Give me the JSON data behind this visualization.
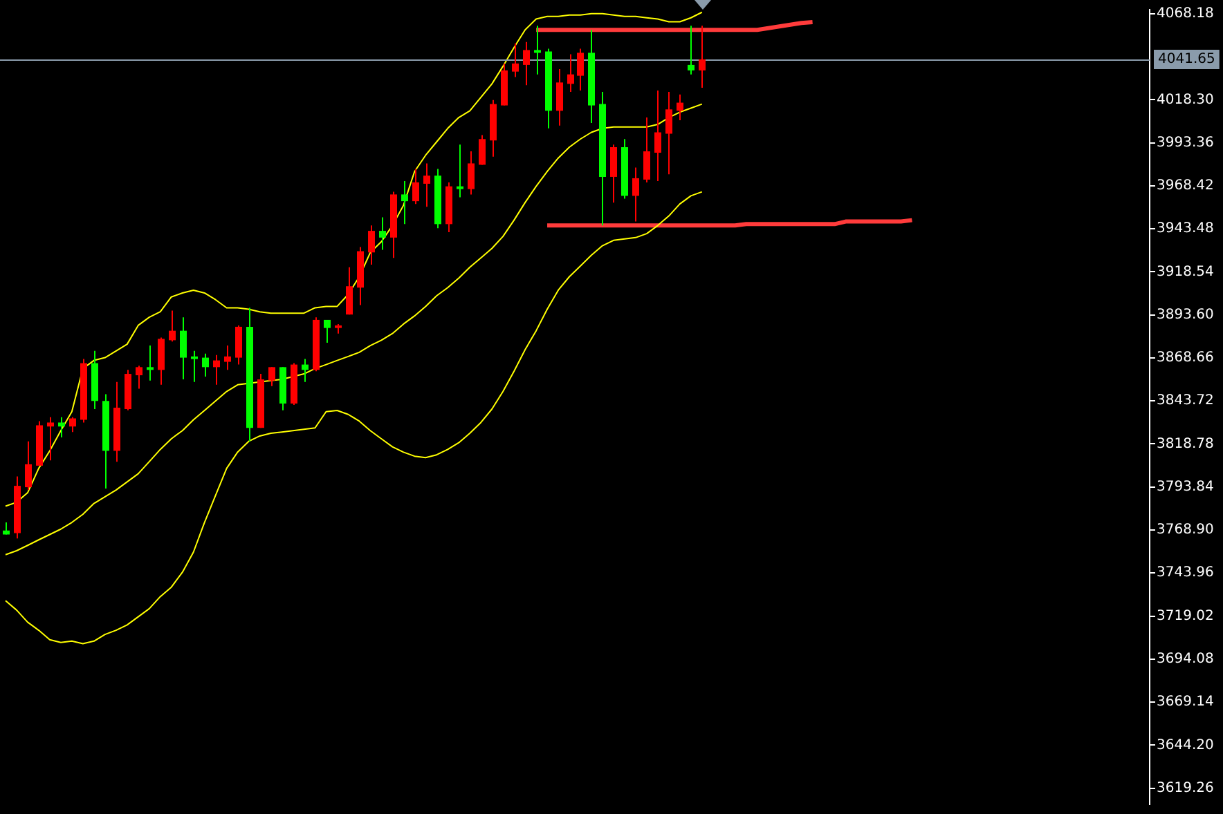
{
  "chart_data": {
    "type": "candlestick",
    "categories": [
      null,
      null,
      null,
      null,
      null,
      null,
      null,
      null,
      null,
      null,
      null,
      null,
      null,
      null,
      null,
      null,
      null,
      null,
      null,
      null,
      null,
      null,
      null,
      null,
      null,
      null,
      null,
      null,
      null,
      null,
      null,
      null,
      null,
      null,
      null,
      null,
      null,
      null,
      null,
      null,
      null,
      null,
      null,
      null,
      null,
      null,
      null,
      null,
      null,
      null,
      null,
      null,
      null,
      null,
      null,
      null,
      null,
      null,
      null,
      null,
      null,
      null,
      null,
      null,
      null,
      null,
      null,
      null,
      null,
      null,
      null,
      null,
      null,
      null,
      null,
      null,
      null,
      null,
      null,
      null,
      null,
      null,
      null,
      null,
      null,
      null,
      null,
      null,
      null,
      null,
      null,
      null,
      null,
      null,
      null,
      null,
      null,
      null,
      null,
      null,
      null,
      null,
      null,
      null
    ],
    "ohlc": [
      [
        3768.6,
        3773.3,
        3766.3,
        3766.3
      ],
      [
        3767.1,
        3799.9,
        3764.0,
        3794.5
      ],
      [
        3793.7,
        3820.3,
        3792.1,
        3807.0
      ],
      [
        3806.2,
        3832.0,
        3806.2,
        3829.6
      ],
      [
        3828.9,
        3834.3,
        3809.3,
        3831.2
      ],
      [
        3831.2,
        3834.3,
        3822.6,
        3828.9
      ],
      [
        3828.9,
        3834.3,
        3825.7,
        3833.6
      ],
      [
        3832.8,
        3868.0,
        3831.2,
        3865.6
      ],
      [
        3865.6,
        3872.7,
        3839.0,
        3843.7
      ],
      [
        3843.7,
        3847.6,
        3792.9,
        3814.8
      ],
      [
        3814.8,
        3854.7,
        3808.5,
        3839.8
      ],
      [
        3839.0,
        3861.7,
        3838.3,
        3859.4
      ],
      [
        3858.6,
        3864.1,
        3850.8,
        3863.3
      ],
      [
        3863.3,
        3875.8,
        3855.5,
        3861.7
      ],
      [
        3861.7,
        3880.5,
        3853.1,
        3879.7
      ],
      [
        3878.9,
        3896.1,
        3878.1,
        3884.4
      ],
      [
        3884.4,
        3892.2,
        3856.2,
        3868.8
      ],
      [
        3869.5,
        3872.7,
        3854.7,
        3868.0
      ],
      [
        3868.8,
        3871.1,
        3857.8,
        3863.3
      ],
      [
        3863.3,
        3870.3,
        3853.1,
        3867.2
      ],
      [
        3866.4,
        3875.8,
        3861.7,
        3869.5
      ],
      [
        3868.8,
        3887.5,
        3864.8,
        3886.7
      ],
      [
        3886.7,
        3897.7,
        3820.3,
        3828.1
      ],
      [
        3828.1,
        3859.4,
        3828.1,
        3856.2
      ],
      [
        3855.5,
        3863.3,
        3852.3,
        3863.3
      ],
      [
        3863.3,
        3863.3,
        3838.3,
        3842.2
      ],
      [
        3842.2,
        3865.6,
        3841.4,
        3864.8
      ],
      [
        3864.8,
        3868.0,
        3854.7,
        3861.7
      ],
      [
        3861.7,
        3892.2,
        3860.9,
        3890.7
      ],
      [
        3890.7,
        3890.7,
        3877.4,
        3886.0
      ],
      [
        3886.0,
        3888.3,
        3882.8,
        3887.5
      ],
      [
        3893.8,
        3921.2,
        3893.8,
        3910.2
      ],
      [
        3909.4,
        3932.9,
        3899.3,
        3930.5
      ],
      [
        3929.8,
        3945.4,
        3922.7,
        3942.3
      ],
      [
        3942.3,
        3950.1,
        3931.3,
        3938.4
      ],
      [
        3938.4,
        3965.0,
        3926.6,
        3963.4
      ],
      [
        3963.4,
        3971.2,
        3946.2,
        3959.5
      ],
      [
        3959.5,
        3978.2,
        3957.9,
        3970.4
      ],
      [
        3969.6,
        3981.4,
        3956.3,
        3974.3
      ],
      [
        3974.3,
        3978.2,
        3943.8,
        3946.2
      ],
      [
        3946.2,
        3970.4,
        3941.5,
        3968.1
      ],
      [
        3968.1,
        3992.3,
        3961.8,
        3966.5
      ],
      [
        3966.5,
        3988.4,
        3963.4,
        3981.4
      ],
      [
        3980.6,
        3997.8,
        3980.6,
        3995.5
      ],
      [
        3994.7,
        4018.1,
        3985.3,
        4015.8
      ],
      [
        4015.0,
        4039.3,
        4015.0,
        4035.3
      ],
      [
        4034.6,
        4051.0,
        4031.4,
        4039.3
      ],
      [
        4038.5,
        4051.8,
        4026.7,
        4047.1
      ],
      [
        4047.1,
        4061.2,
        4033.0,
        4045.5
      ],
      [
        4046.3,
        4047.9,
        4001.7,
        4011.9
      ],
      [
        4011.9,
        4036.1,
        4003.3,
        4028.3
      ],
      [
        4027.5,
        4044.7,
        4022.8,
        4033.0
      ],
      [
        4032.2,
        4047.9,
        4023.6,
        4045.5
      ],
      [
        4045.5,
        4058.8,
        4004.8,
        4015.0
      ],
      [
        4015.8,
        4022.8,
        3945.4,
        3973.6
      ],
      [
        3973.6,
        3992.3,
        3958.7,
        3990.8
      ],
      [
        3990.8,
        3995.5,
        3961.0,
        3962.6
      ],
      [
        3962.6,
        3979.0,
        3947.7,
        3972.8
      ],
      [
        3972.0,
        4008.0,
        3970.4,
        3988.4
      ],
      [
        3987.6,
        4023.6,
        3971.2,
        3999.4
      ],
      [
        3998.6,
        4022.8,
        3975.1,
        4012.7
      ],
      [
        4011.9,
        4021.3,
        4006.4,
        4016.6
      ],
      [
        4038.5,
        4061.2,
        4033.0,
        4035.3
      ],
      [
        4035.3,
        4061.2,
        4025.2,
        4041.7
      ],
      null,
      null,
      null,
      null,
      null,
      null,
      null,
      null,
      null,
      null,
      null,
      null,
      null,
      null,
      null,
      null,
      null,
      null,
      null,
      null,
      null,
      null,
      null,
      null,
      null,
      null,
      null,
      null,
      null,
      null,
      null,
      null,
      null,
      null,
      null,
      null,
      null,
      null,
      null,
      null
    ],
    "colors": [
      "#00ff00",
      "#ff0000",
      "#ff0000",
      "#ff0000",
      "#ff0000",
      "#00ff00",
      "#ff0000",
      "#ff0000",
      "#00ff00",
      "#00ff00",
      "#ff0000",
      "#ff0000",
      "#ff0000",
      "#00ff00",
      "#ff0000",
      "#ff0000",
      "#00ff00",
      "#00ff00",
      "#00ff00",
      "#ff0000",
      "#ff0000",
      "#ff0000",
      "#00ff00",
      "#ff0000",
      "#ff0000",
      "#00ff00",
      "#ff0000",
      "#00ff00",
      "#ff0000",
      "#00ff00",
      "#ff0000",
      "#ff0000",
      "#ff0000",
      "#ff0000",
      "#00ff00",
      "#ff0000",
      "#00ff00",
      "#ff0000",
      "#ff0000",
      "#00ff00",
      "#ff0000",
      "#00ff00",
      "#ff0000",
      "#ff0000",
      "#ff0000",
      "#ff0000",
      "#ff0000",
      "#ff0000",
      "#00ff00",
      "#00ff00",
      "#ff0000",
      "#ff0000",
      "#ff0000",
      "#00ff00",
      "#00ff00",
      "#ff0000",
      "#00ff00",
      "#ff0000",
      "#ff0000",
      "#ff0000",
      "#ff0000",
      "#ff0000",
      "#00ff00",
      "#ff0000",
      null,
      null,
      null,
      null,
      null,
      null,
      null,
      null,
      null,
      null,
      null,
      null,
      null,
      null,
      null,
      null,
      null,
      null,
      null,
      null,
      null,
      null,
      null,
      null,
      null,
      null,
      null,
      null,
      null,
      null,
      null,
      null,
      null,
      null,
      null,
      null,
      null,
      null,
      null,
      null
    ],
    "series": [
      {
        "type": "line",
        "color": "#ffff00",
        "values": [
          3782.7,
          3785.0,
          3790.5,
          3804.6,
          3814.8,
          3826.5,
          3837.5,
          3862.5,
          3867.2,
          3868.8,
          3872.7,
          3876.6,
          3887.5,
          3892.2,
          3895.4,
          3904.0,
          3906.3,
          3907.9,
          3906.3,
          3902.4,
          3897.7,
          3897.7,
          3896.9,
          3895.4,
          3894.6,
          3894.6,
          3894.6,
          3894.6,
          3897.7,
          3898.5,
          3898.5,
          3905.5,
          3915.7,
          3929.8,
          3936.0,
          3945.4,
          3957.1,
          3976.7,
          3986.1,
          3993.9,
          4001.7,
          4008.0,
          4011.9,
          4019.7,
          4027.5,
          4037.7,
          4048.6,
          4058.8,
          4065.1,
          4066.6,
          4066.6,
          4067.4,
          4067.4,
          4068.2,
          4068.2,
          4067.4,
          4066.6,
          4066.6,
          4065.8,
          4065.1,
          4063.5,
          4063.5,
          4065.8,
          4069.0,
          null,
          null,
          null,
          null,
          null,
          null,
          null,
          null,
          null,
          null,
          null,
          null,
          null,
          null,
          null,
          null,
          null,
          null,
          null,
          null,
          null,
          null,
          null,
          null,
          null,
          null,
          null,
          null,
          null,
          null,
          null,
          null,
          null,
          null,
          null,
          null,
          null,
          null,
          null,
          null
        ]
      },
      {
        "type": "line",
        "color": "#ffff00",
        "values": [
          3754.6,
          3756.9,
          3760.0,
          3763.2,
          3766.3,
          3769.4,
          3773.3,
          3778.0,
          3784.3,
          3788.2,
          3792.1,
          3796.8,
          3801.5,
          3808.5,
          3815.6,
          3821.8,
          3826.5,
          3832.8,
          3838.2,
          3843.7,
          3849.2,
          3853.1,
          3853.9,
          3854.7,
          3855.5,
          3856.2,
          3857.8,
          3859.4,
          3862.5,
          3864.8,
          3867.2,
          3869.5,
          3871.9,
          3875.8,
          3878.9,
          3882.8,
          3888.3,
          3893.0,
          3898.5,
          3904.7,
          3909.4,
          3914.9,
          3921.2,
          3926.6,
          3932.1,
          3939.1,
          3948.5,
          3958.7,
          3968.1,
          3976.7,
          3984.5,
          3990.8,
          3995.5,
          3999.4,
          4001.7,
          4002.5,
          4002.5,
          4002.5,
          4002.5,
          4004.0,
          4008.0,
          4011.1,
          4013.4,
          4015.8,
          null,
          null,
          null,
          null,
          null,
          null,
          null,
          null,
          null,
          null,
          null,
          null,
          null,
          null,
          null,
          null,
          null,
          null,
          null,
          null,
          null,
          null,
          null,
          null,
          null,
          null,
          null,
          null,
          null,
          null,
          null,
          null,
          null,
          null,
          null,
          null,
          null,
          null,
          null,
          null
        ]
      },
      {
        "type": "line",
        "color": "#ffff00",
        "values": [
          3728.0,
          3722.5,
          3715.5,
          3710.8,
          3705.3,
          3703.7,
          3704.5,
          3703.0,
          3704.5,
          3708.4,
          3710.8,
          3713.9,
          3718.6,
          3723.3,
          3730.3,
          3735.8,
          3744.4,
          3756.1,
          3773.3,
          3789.0,
          3804.6,
          3814.1,
          3820.3,
          3823.4,
          3825.0,
          3825.7,
          3826.5,
          3827.3,
          3828.1,
          3837.5,
          3838.2,
          3835.9,
          3832.0,
          3826.5,
          3821.8,
          3817.1,
          3814.0,
          3811.7,
          3810.9,
          3812.5,
          3815.6,
          3819.5,
          3825.0,
          3831.2,
          3839.0,
          3849.2,
          3860.9,
          3873.4,
          3884.4,
          3896.9,
          3907.9,
          3915.7,
          3921.9,
          3928.2,
          3933.7,
          3936.8,
          3937.6,
          3938.4,
          3940.7,
          3945.4,
          3950.9,
          3957.9,
          3962.6,
          3964.9,
          null,
          null,
          null,
          null,
          null,
          null,
          null,
          null,
          null,
          null,
          null,
          null,
          null,
          null,
          null,
          null,
          null,
          null,
          null,
          null,
          null,
          null,
          null,
          null,
          null,
          null,
          null,
          null,
          null,
          null,
          null,
          null,
          null,
          null,
          null,
          null,
          null,
          null,
          null,
          null
        ]
      },
      {
        "type": "line",
        "color": "#ff3b3b",
        "values": [
          null,
          null,
          null,
          null,
          null,
          null,
          null,
          null,
          null,
          null,
          null,
          null,
          null,
          null,
          null,
          null,
          null,
          null,
          null,
          null,
          null,
          null,
          null,
          null,
          null,
          null,
          null,
          null,
          null,
          null,
          null,
          null,
          null,
          null,
          null,
          null,
          null,
          null,
          null,
          null,
          null,
          null,
          null,
          null,
          null,
          null,
          null,
          null,
          4058.8,
          4058.8,
          4058.8,
          4058.8,
          4058.8,
          4058.8,
          4058.8,
          4058.8,
          4058.8,
          4058.8,
          4058.8,
          4058.8,
          4058.8,
          4058.8,
          4058.8,
          4058.8,
          4058.8,
          4058.8,
          4058.8,
          4058.8,
          4058.8,
          4059.8,
          4060.8,
          4061.8,
          4062.8,
          4063.3,
          null,
          null,
          null,
          null,
          null,
          null,
          null,
          null,
          null,
          null,
          null,
          null,
          null,
          null,
          null,
          null,
          null,
          null,
          null,
          null,
          null,
          null,
          null,
          null,
          null,
          null,
          null,
          null,
          null,
          null
        ]
      },
      {
        "type": "line",
        "color": "#ff3b3b",
        "values": [
          null,
          null,
          null,
          null,
          null,
          null,
          null,
          null,
          null,
          null,
          null,
          null,
          null,
          null,
          null,
          null,
          null,
          null,
          null,
          null,
          null,
          null,
          null,
          null,
          null,
          null,
          null,
          null,
          null,
          null,
          null,
          null,
          null,
          null,
          null,
          null,
          null,
          null,
          null,
          null,
          null,
          null,
          null,
          null,
          null,
          null,
          null,
          null,
          null,
          3945.4,
          3945.4,
          3945.4,
          3945.4,
          3945.4,
          3945.4,
          3945.4,
          3945.4,
          3945.4,
          3945.4,
          3945.4,
          3945.4,
          3945.4,
          3945.4,
          3945.4,
          3945.4,
          3945.4,
          3945.4,
          3946.2,
          3946.2,
          3946.2,
          3946.2,
          3946.2,
          3946.2,
          3946.2,
          3946.2,
          3946.2,
          3947.7,
          3947.7,
          3947.7,
          3947.7,
          3947.7,
          3947.7,
          3948.5,
          null,
          null,
          null,
          null,
          null,
          null,
          null,
          null,
          null,
          null,
          null,
          null,
          null,
          null,
          null,
          null,
          null,
          null,
          null,
          null,
          null
        ]
      }
    ],
    "ylim": [
      3609.9,
      4070.5
    ],
    "yticks": [
      {
        "value": 4068.18,
        "label": "4068.18"
      },
      {
        "value": 4018.3,
        "label": "4018.30"
      },
      {
        "value": 3993.36,
        "label": "3993.36"
      },
      {
        "value": 3968.42,
        "label": "3968.42"
      },
      {
        "value": 3943.48,
        "label": "3943.48"
      },
      {
        "value": 3918.54,
        "label": "3918.54"
      },
      {
        "value": 3893.6,
        "label": "3893.60"
      },
      {
        "value": 3868.66,
        "label": "3868.66"
      },
      {
        "value": 3843.72,
        "label": "3843.72"
      },
      {
        "value": 3818.78,
        "label": "3818.78"
      },
      {
        "value": 3793.84,
        "label": "3793.84"
      },
      {
        "value": 3768.9,
        "label": "3768.90"
      },
      {
        "value": 3743.96,
        "label": "3743.96"
      },
      {
        "value": 3719.02,
        "label": "3719.02"
      },
      {
        "value": 3694.08,
        "label": "3694.08"
      },
      {
        "value": 3669.14,
        "label": "3669.14"
      },
      {
        "value": 3644.2,
        "label": "3644.20"
      },
      {
        "value": 3619.26,
        "label": "3619.26"
      }
    ],
    "ref_lines": [
      {
        "axis": "y",
        "value": 4041.65,
        "label": "4041.65",
        "color": "#8a9bab"
      }
    ],
    "tick_labels": "y",
    "grid": false,
    "legend": false
  }
}
